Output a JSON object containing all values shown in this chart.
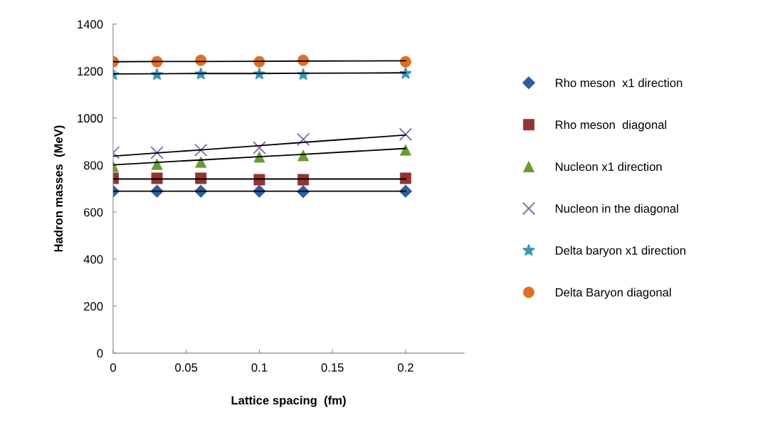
{
  "chart_data": {
    "type": "scatter",
    "xlabel": "Lattice spacing  (fm)",
    "ylabel": "Hadron masses  (MeV)",
    "x": [
      0,
      0.03,
      0.06,
      0.1,
      0.13,
      0.2
    ],
    "xlim": [
      0,
      0.24
    ],
    "xticks": [
      0,
      0.05,
      0.1,
      0.15,
      0.2
    ],
    "ylim": [
      0,
      1400
    ],
    "yticks": [
      0,
      200,
      400,
      600,
      800,
      1000,
      1200,
      1400
    ],
    "grid": false,
    "legend": "right",
    "series": [
      {
        "name": "Rho meson  x1 direction",
        "color": "#2e5e9e",
        "marker": "diamond",
        "values": [
          689,
          689,
          689,
          689,
          687,
          689
        ]
      },
      {
        "name": "Rho meson  diagonal",
        "color": "#953432",
        "marker": "square",
        "values": [
          744,
          744,
          744,
          738,
          738,
          744
        ]
      },
      {
        "name": "Nucleon x1 direction",
        "color": "#6a9a30",
        "marker": "triangle",
        "values": [
          795,
          804,
          813,
          835,
          841,
          865
        ]
      },
      {
        "name": "Nucleon in the diagonal",
        "color": "#7a68a6",
        "marker": "cross",
        "values": [
          853,
          853,
          864,
          874,
          910,
          931
        ]
      },
      {
        "name": "Delta baryon x1 direction",
        "color": "#3b97b5",
        "marker": "star",
        "values": [
          1185,
          1185,
          1188,
          1188,
          1185,
          1190
        ]
      },
      {
        "name": "Delta Baryon diagonal",
        "color": "#e07020",
        "marker": "circle",
        "values": [
          1240,
          1240,
          1246,
          1240,
          1246,
          1240
        ]
      },
      {
        "type": "line",
        "color": "#000000",
        "values": [
          689,
          689,
          689,
          689,
          689,
          689
        ]
      },
      {
        "type": "line",
        "color": "#000000",
        "values": [
          741,
          741,
          741,
          741,
          741,
          741
        ]
      },
      {
        "type": "line",
        "color": "#000000",
        "values": [
          801,
          812,
          822,
          836,
          846,
          871
        ]
      },
      {
        "type": "line",
        "color": "#000000",
        "values": [
          838,
          852,
          865,
          883,
          897,
          928
        ]
      },
      {
        "type": "line",
        "color": "#000000",
        "values": [
          1188,
          1189,
          1190,
          1190,
          1191,
          1193
        ]
      },
      {
        "type": "line",
        "color": "#000000",
        "values": [
          1240,
          1241,
          1241,
          1242,
          1243,
          1244
        ]
      }
    ]
  }
}
